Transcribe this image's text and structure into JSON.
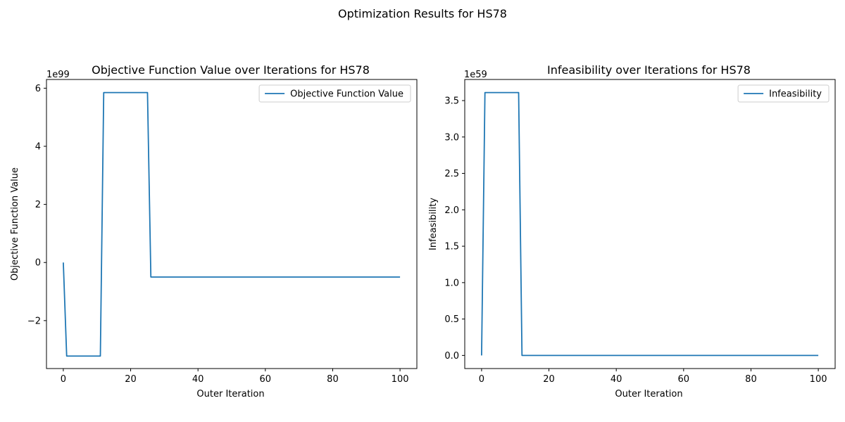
{
  "figure": {
    "suptitle": "Optimization Results for HS78"
  },
  "chart_data": [
    {
      "type": "line",
      "title": "Objective Function Value over Iterations for HS78",
      "xlabel": "Outer Iteration",
      "ylabel": "Objective Function Value",
      "offset_label": "1e99",
      "xlim": [
        -5,
        105
      ],
      "ylim": [
        -3.65,
        6.3
      ],
      "xticks": [
        0,
        20,
        40,
        60,
        80,
        100
      ],
      "xtick_labels": [
        "0",
        "20",
        "40",
        "60",
        "80",
        "100"
      ],
      "yticks": [
        -2,
        0,
        2,
        4,
        6
      ],
      "ytick_labels": [
        "−2",
        "0",
        "2",
        "4",
        "6"
      ],
      "legend": "top-right",
      "color": "#1f77b4",
      "series": [
        {
          "name": "Objective Function Value",
          "x": [
            0,
            1,
            11,
            12,
            25,
            26,
            100
          ],
          "y": [
            0,
            -3.22,
            -3.22,
            5.85,
            5.85,
            -0.5,
            -0.5
          ]
        }
      ]
    },
    {
      "type": "line",
      "title": "Infeasibility over Iterations for HS78",
      "xlabel": "Outer Iteration",
      "ylabel": "Infeasibility",
      "offset_label": "1e59",
      "xlim": [
        -5,
        105
      ],
      "ylim": [
        -0.18,
        3.79
      ],
      "xticks": [
        0,
        20,
        40,
        60,
        80,
        100
      ],
      "xtick_labels": [
        "0",
        "20",
        "40",
        "60",
        "80",
        "100"
      ],
      "yticks": [
        0.0,
        0.5,
        1.0,
        1.5,
        2.0,
        2.5,
        3.0,
        3.5
      ],
      "ytick_labels": [
        "0.0",
        "0.5",
        "1.0",
        "1.5",
        "2.0",
        "2.5",
        "3.0",
        "3.5"
      ],
      "legend": "top-right",
      "color": "#1f77b4",
      "series": [
        {
          "name": "Infeasibility",
          "x": [
            0,
            1,
            11,
            12,
            100
          ],
          "y": [
            0,
            3.61,
            3.61,
            0.0,
            0.0
          ]
        }
      ]
    }
  ]
}
